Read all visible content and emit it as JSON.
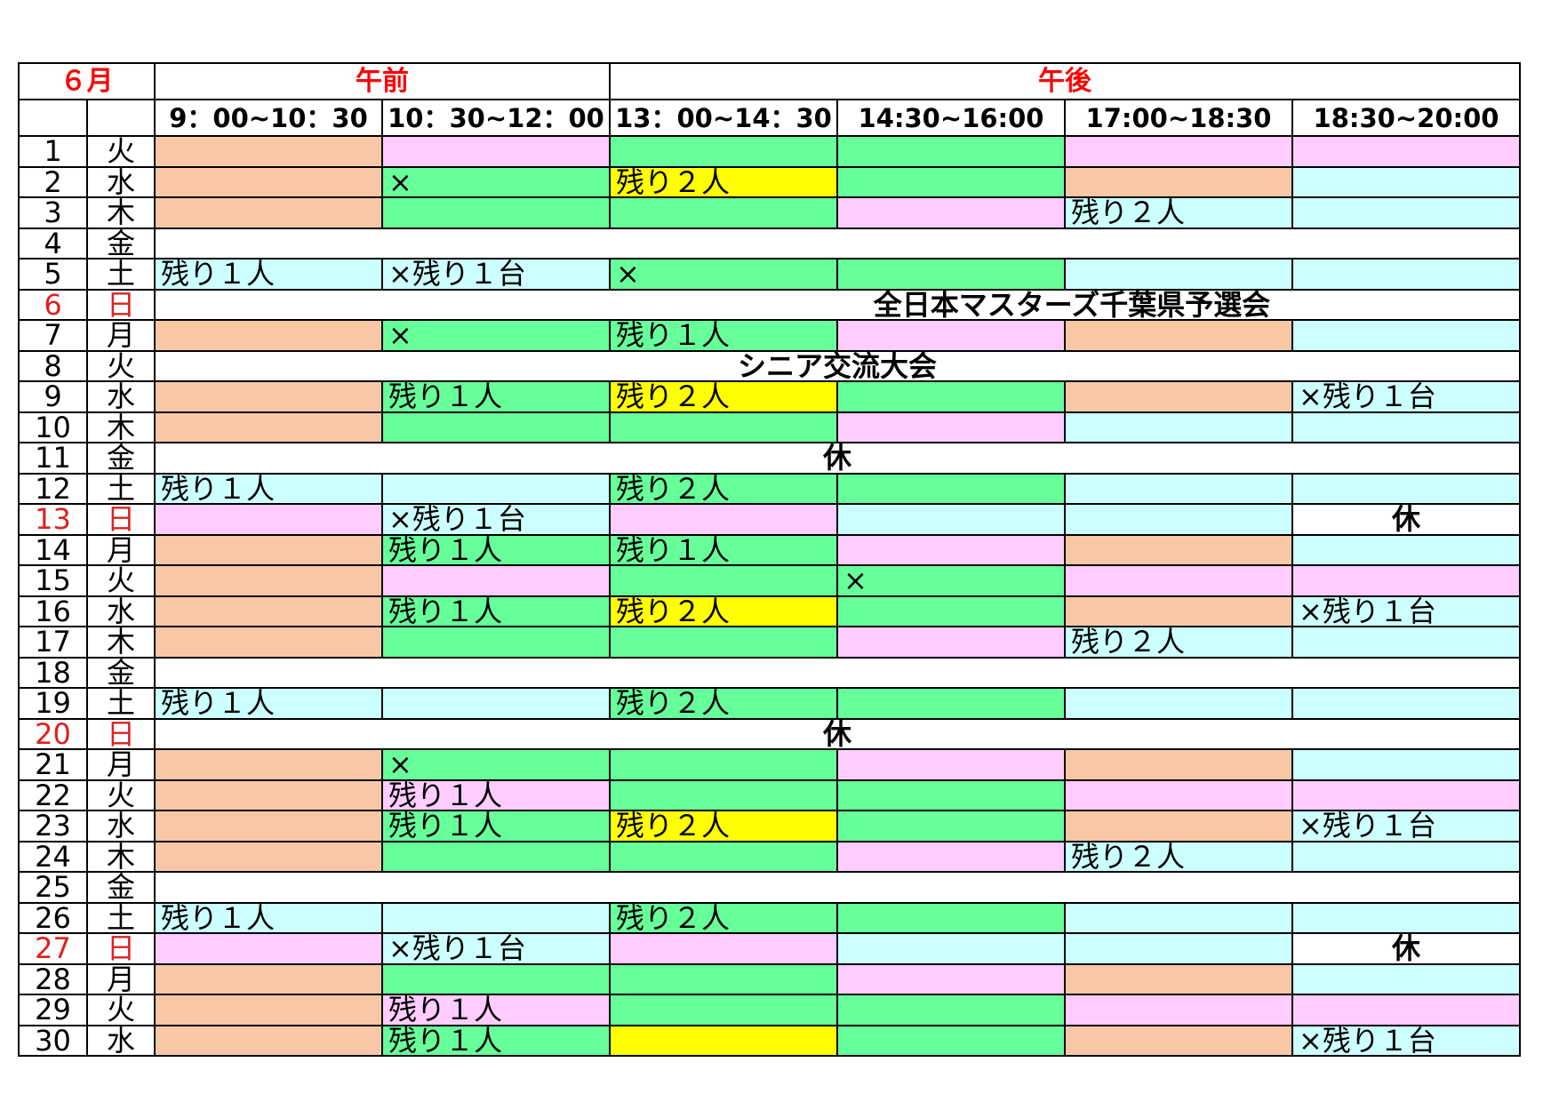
{
  "schedule": {
    "month_label": "６月",
    "am_label": "午前",
    "pm_label": "午後",
    "slots": [
      "9：00~10：30",
      "10：30~12：00",
      "13：00~14：30",
      "14:30~16:00",
      "17:00~18:30",
      "18:30~20:00"
    ],
    "colors": {
      "o": "#f8c8a6",
      "p": "#ffccff",
      "g": "#66ff99",
      "c": "#ccffff",
      "y": "#ffff00",
      "w": "#ffffff"
    },
    "rows": [
      {
        "day": "1",
        "weekday": "火",
        "cells": [
          {
            "color": "o",
            "text": ""
          },
          {
            "color": "p",
            "text": ""
          },
          {
            "color": "g",
            "text": ""
          },
          {
            "color": "g",
            "text": ""
          },
          {
            "color": "p",
            "text": ""
          },
          {
            "color": "p",
            "text": ""
          }
        ]
      },
      {
        "day": "2",
        "weekday": "水",
        "cells": [
          {
            "color": "o",
            "text": ""
          },
          {
            "color": "g",
            "text": "×"
          },
          {
            "color": "y",
            "text": "残り２人"
          },
          {
            "color": "g",
            "text": ""
          },
          {
            "color": "o",
            "text": ""
          },
          {
            "color": "c",
            "text": ""
          }
        ]
      },
      {
        "day": "3",
        "weekday": "木",
        "cells": [
          {
            "color": "o",
            "text": ""
          },
          {
            "color": "g",
            "text": ""
          },
          {
            "color": "g",
            "text": ""
          },
          {
            "color": "p",
            "text": ""
          },
          {
            "color": "c",
            "text": "残り２人"
          },
          {
            "color": "c",
            "text": ""
          }
        ]
      },
      {
        "day": "4",
        "weekday": "金",
        "span": {
          "text": "",
          "style": "plain"
        }
      },
      {
        "day": "5",
        "weekday": "土",
        "cells": [
          {
            "color": "c",
            "text": "残り１人"
          },
          {
            "color": "c",
            "text": "×残り１台"
          },
          {
            "color": "g",
            "text": "×"
          },
          {
            "color": "g",
            "text": ""
          },
          {
            "color": "c",
            "text": ""
          },
          {
            "color": "c",
            "text": ""
          }
        ]
      },
      {
        "day": "6",
        "weekday": "日",
        "holiday": true,
        "span": {
          "text": "全日本マスターズ千葉県予選会",
          "style": "event-offset"
        }
      },
      {
        "day": "7",
        "weekday": "月",
        "cells": [
          {
            "color": "o",
            "text": ""
          },
          {
            "color": "g",
            "text": "×"
          },
          {
            "color": "g",
            "text": "残り１人"
          },
          {
            "color": "p",
            "text": ""
          },
          {
            "color": "o",
            "text": ""
          },
          {
            "color": "c",
            "text": ""
          }
        ]
      },
      {
        "day": "8",
        "weekday": "火",
        "span": {
          "text": "シニア交流大会",
          "style": "event"
        }
      },
      {
        "day": "9",
        "weekday": "水",
        "cells": [
          {
            "color": "o",
            "text": ""
          },
          {
            "color": "g",
            "text": "残り１人"
          },
          {
            "color": "y",
            "text": "残り２人"
          },
          {
            "color": "g",
            "text": ""
          },
          {
            "color": "o",
            "text": ""
          },
          {
            "color": "c",
            "text": "×残り１台"
          }
        ]
      },
      {
        "day": "10",
        "weekday": "木",
        "cells": [
          {
            "color": "o",
            "text": ""
          },
          {
            "color": "g",
            "text": ""
          },
          {
            "color": "g",
            "text": ""
          },
          {
            "color": "p",
            "text": ""
          },
          {
            "color": "c",
            "text": ""
          },
          {
            "color": "c",
            "text": ""
          }
        ]
      },
      {
        "day": "11",
        "weekday": "金",
        "span": {
          "text": "休",
          "style": "event"
        }
      },
      {
        "day": "12",
        "weekday": "土",
        "cells": [
          {
            "color": "c",
            "text": "残り１人"
          },
          {
            "color": "c",
            "text": ""
          },
          {
            "color": "g",
            "text": "残り２人"
          },
          {
            "color": "g",
            "text": ""
          },
          {
            "color": "c",
            "text": ""
          },
          {
            "color": "c",
            "text": ""
          }
        ]
      },
      {
        "day": "13",
        "weekday": "日",
        "holiday": true,
        "cells": [
          {
            "color": "p",
            "text": ""
          },
          {
            "color": "c",
            "text": "×残り１台"
          },
          {
            "color": "p",
            "text": ""
          },
          {
            "color": "c",
            "text": ""
          },
          {
            "color": "c",
            "text": ""
          },
          {
            "color": "w",
            "text": "休",
            "closed": true
          }
        ]
      },
      {
        "day": "14",
        "weekday": "月",
        "cells": [
          {
            "color": "o",
            "text": ""
          },
          {
            "color": "g",
            "text": "残り１人"
          },
          {
            "color": "g",
            "text": "残り１人"
          },
          {
            "color": "p",
            "text": ""
          },
          {
            "color": "o",
            "text": ""
          },
          {
            "color": "c",
            "text": ""
          }
        ]
      },
      {
        "day": "15",
        "weekday": "火",
        "cells": [
          {
            "color": "o",
            "text": ""
          },
          {
            "color": "p",
            "text": ""
          },
          {
            "color": "g",
            "text": ""
          },
          {
            "color": "g",
            "text": "×"
          },
          {
            "color": "p",
            "text": ""
          },
          {
            "color": "p",
            "text": ""
          }
        ]
      },
      {
        "day": "16",
        "weekday": "水",
        "cells": [
          {
            "color": "o",
            "text": ""
          },
          {
            "color": "g",
            "text": "残り１人"
          },
          {
            "color": "y",
            "text": "残り２人"
          },
          {
            "color": "g",
            "text": ""
          },
          {
            "color": "o",
            "text": ""
          },
          {
            "color": "c",
            "text": "×残り１台"
          }
        ]
      },
      {
        "day": "17",
        "weekday": "木",
        "cells": [
          {
            "color": "o",
            "text": ""
          },
          {
            "color": "g",
            "text": ""
          },
          {
            "color": "g",
            "text": ""
          },
          {
            "color": "p",
            "text": ""
          },
          {
            "color": "c",
            "text": "残り２人"
          },
          {
            "color": "c",
            "text": ""
          }
        ]
      },
      {
        "day": "18",
        "weekday": "金",
        "span": {
          "text": "",
          "style": "plain"
        }
      },
      {
        "day": "19",
        "weekday": "土",
        "cells": [
          {
            "color": "c",
            "text": "残り１人"
          },
          {
            "color": "c",
            "text": ""
          },
          {
            "color": "g",
            "text": "残り２人"
          },
          {
            "color": "g",
            "text": ""
          },
          {
            "color": "c",
            "text": ""
          },
          {
            "color": "c",
            "text": ""
          }
        ]
      },
      {
        "day": "20",
        "weekday": "日",
        "holiday": true,
        "span": {
          "text": "休",
          "style": "event"
        }
      },
      {
        "day": "21",
        "weekday": "月",
        "cells": [
          {
            "color": "o",
            "text": ""
          },
          {
            "color": "g",
            "text": "×"
          },
          {
            "color": "g",
            "text": ""
          },
          {
            "color": "p",
            "text": ""
          },
          {
            "color": "o",
            "text": ""
          },
          {
            "color": "c",
            "text": ""
          }
        ]
      },
      {
        "day": "22",
        "weekday": "火",
        "cells": [
          {
            "color": "o",
            "text": ""
          },
          {
            "color": "p",
            "text": "残り１人"
          },
          {
            "color": "g",
            "text": ""
          },
          {
            "color": "g",
            "text": ""
          },
          {
            "color": "p",
            "text": ""
          },
          {
            "color": "p",
            "text": ""
          }
        ]
      },
      {
        "day": "23",
        "weekday": "水",
        "cells": [
          {
            "color": "o",
            "text": ""
          },
          {
            "color": "g",
            "text": "残り１人"
          },
          {
            "color": "y",
            "text": "残り２人"
          },
          {
            "color": "g",
            "text": ""
          },
          {
            "color": "o",
            "text": ""
          },
          {
            "color": "c",
            "text": "×残り１台"
          }
        ]
      },
      {
        "day": "24",
        "weekday": "木",
        "cells": [
          {
            "color": "o",
            "text": ""
          },
          {
            "color": "g",
            "text": ""
          },
          {
            "color": "g",
            "text": ""
          },
          {
            "color": "p",
            "text": ""
          },
          {
            "color": "c",
            "text": "残り２人"
          },
          {
            "color": "c",
            "text": ""
          }
        ]
      },
      {
        "day": "25",
        "weekday": "金",
        "span": {
          "text": "",
          "style": "plain"
        }
      },
      {
        "day": "26",
        "weekday": "土",
        "cells": [
          {
            "color": "c",
            "text": "残り１人"
          },
          {
            "color": "c",
            "text": ""
          },
          {
            "color": "g",
            "text": "残り２人"
          },
          {
            "color": "g",
            "text": ""
          },
          {
            "color": "c",
            "text": ""
          },
          {
            "color": "c",
            "text": ""
          }
        ]
      },
      {
        "day": "27",
        "weekday": "日",
        "holiday": true,
        "cells": [
          {
            "color": "p",
            "text": ""
          },
          {
            "color": "c",
            "text": "×残り１台"
          },
          {
            "color": "p",
            "text": ""
          },
          {
            "color": "c",
            "text": ""
          },
          {
            "color": "c",
            "text": ""
          },
          {
            "color": "w",
            "text": "休",
            "closed": true
          }
        ]
      },
      {
        "day": "28",
        "weekday": "月",
        "cells": [
          {
            "color": "o",
            "text": ""
          },
          {
            "color": "g",
            "text": ""
          },
          {
            "color": "g",
            "text": ""
          },
          {
            "color": "p",
            "text": ""
          },
          {
            "color": "o",
            "text": ""
          },
          {
            "color": "c",
            "text": ""
          }
        ]
      },
      {
        "day": "29",
        "weekday": "火",
        "cells": [
          {
            "color": "o",
            "text": ""
          },
          {
            "color": "p",
            "text": "残り１人"
          },
          {
            "color": "g",
            "text": ""
          },
          {
            "color": "g",
            "text": ""
          },
          {
            "color": "p",
            "text": ""
          },
          {
            "color": "p",
            "text": ""
          }
        ]
      },
      {
        "day": "30",
        "weekday": "水",
        "cells": [
          {
            "color": "o",
            "text": ""
          },
          {
            "color": "g",
            "text": "残り１人"
          },
          {
            "color": "y",
            "text": ""
          },
          {
            "color": "g",
            "text": ""
          },
          {
            "color": "o",
            "text": ""
          },
          {
            "color": "c",
            "text": "×残り１台"
          }
        ]
      }
    ]
  }
}
